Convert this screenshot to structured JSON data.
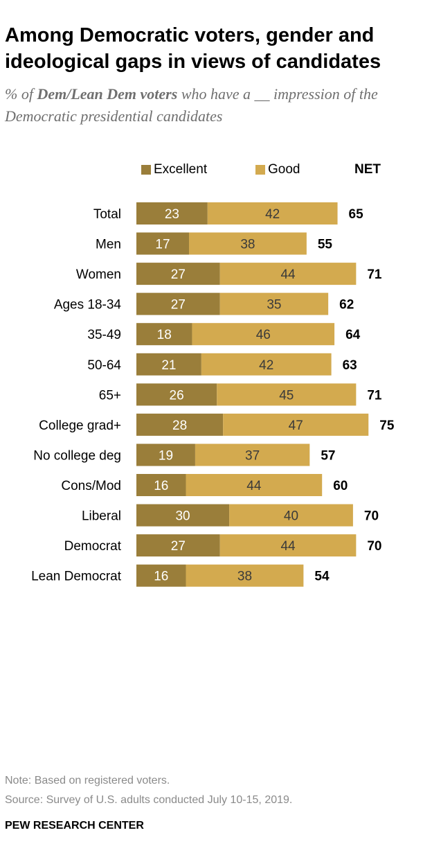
{
  "header": {
    "title": "Among Democratic voters, gender and ideological gaps in views of candidates",
    "subtitle_prefix": "% of ",
    "subtitle_bold": "Dem/Lean Dem voters",
    "subtitle_suffix": " who have a __ impression of the Democratic presidential candidates"
  },
  "legend": {
    "excellent_label": "Excellent",
    "good_label": "Good",
    "net_label": "NET"
  },
  "colors": {
    "excellent": "#9a7e3a",
    "good": "#d3aa4f"
  },
  "chart_data": {
    "type": "bar",
    "orientation": "horizontal",
    "stacked": true,
    "categories": [
      "Total",
      "Men",
      "Women",
      "Ages 18-34",
      "35-49",
      "50-64",
      "65+",
      "College grad+",
      "No college deg",
      "Cons/Mod",
      "Liberal",
      "Democrat",
      "Lean Democrat"
    ],
    "series": [
      {
        "name": "Excellent",
        "values": [
          23,
          17,
          27,
          27,
          18,
          21,
          26,
          28,
          19,
          16,
          30,
          27,
          16
        ]
      },
      {
        "name": "Good",
        "values": [
          42,
          38,
          44,
          35,
          46,
          42,
          45,
          47,
          37,
          44,
          40,
          44,
          38
        ]
      }
    ],
    "net": [
      65,
      55,
      71,
      62,
      64,
      63,
      71,
      75,
      57,
      60,
      70,
      70,
      54
    ],
    "groups": [
      [
        0
      ],
      [
        1,
        2
      ],
      [
        3,
        4,
        5,
        6
      ],
      [
        7,
        8
      ],
      [
        9,
        10
      ],
      [
        11,
        12
      ]
    ]
  },
  "notes": {
    "note": "Note: Based on registered voters.",
    "source": "Source: Survey of U.S. adults conducted July 10-15, 2019."
  },
  "footer": {
    "brand": "PEW RESEARCH CENTER"
  }
}
